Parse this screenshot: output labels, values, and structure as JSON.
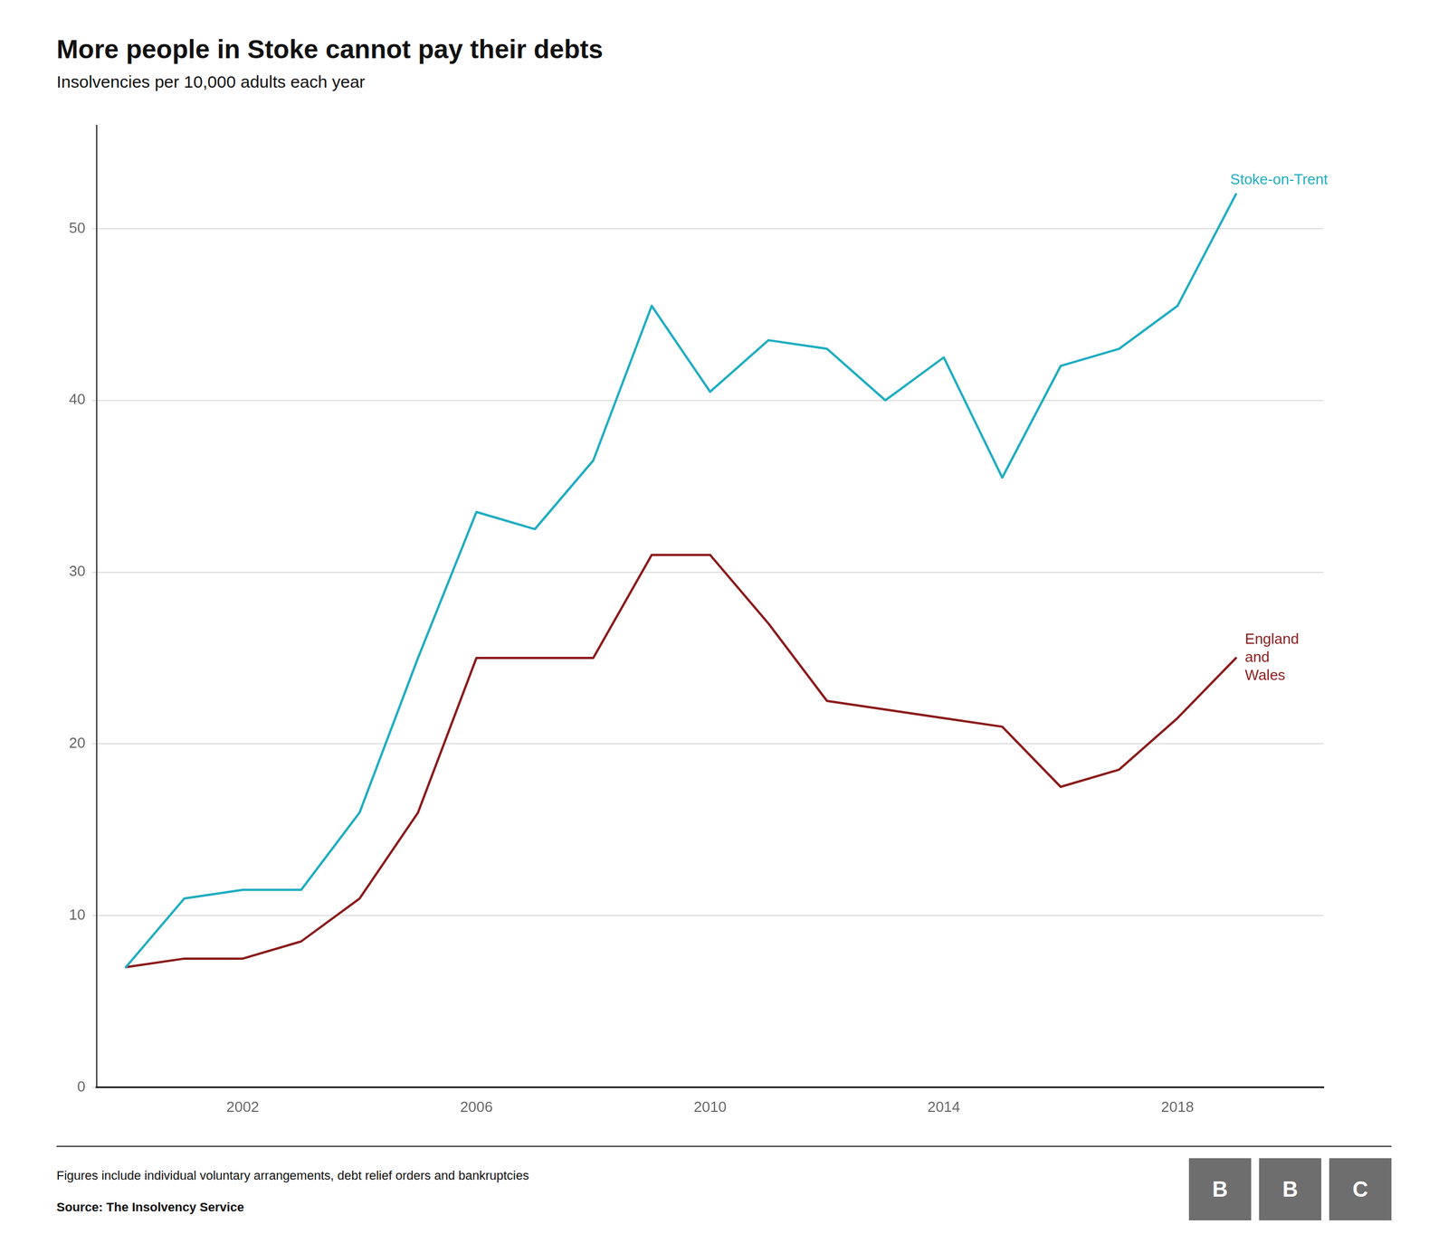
{
  "chart_data": {
    "type": "line",
    "title": "More people in Stoke cannot pay their debts",
    "subtitle": "Insolvencies per 10,000 adults each year",
    "footnote": "Figures include individual voluntary arrangements, debt relief orders and bankruptcies",
    "source": "Source: The Insolvency Service",
    "logo": {
      "text": "BBC",
      "color": "#6e6e6e"
    },
    "x": [
      2000,
      2001,
      2002,
      2003,
      2004,
      2005,
      2006,
      2007,
      2008,
      2009,
      2010,
      2011,
      2012,
      2013,
      2014,
      2015,
      2016,
      2017,
      2018,
      2019
    ],
    "series": [
      {
        "name": "Stoke-on-Trent",
        "color": "#1EADC1",
        "values": [
          7,
          11,
          11.5,
          11.5,
          16,
          25,
          33.5,
          32.5,
          36.5,
          45.5,
          40.5,
          43.5,
          43,
          40,
          42.5,
          35.5,
          42,
          43,
          45.5,
          52
        ]
      },
      {
        "name": "England\nand\nWales",
        "color": "#8B1A1A",
        "values": [
          7,
          7.5,
          7.5,
          8.5,
          11,
          16,
          25,
          25,
          25,
          31,
          31,
          27,
          22.5,
          22,
          21.5,
          21,
          17.5,
          18.5,
          21.5,
          25
        ]
      }
    ],
    "xlim": [
      1999.5,
      2020.5
    ],
    "xticks": [
      2002,
      2006,
      2010,
      2014,
      2018
    ],
    "ylim": [
      0,
      56
    ],
    "yticks": [
      0,
      10,
      20,
      30,
      40,
      50
    ],
    "grid": true
  }
}
